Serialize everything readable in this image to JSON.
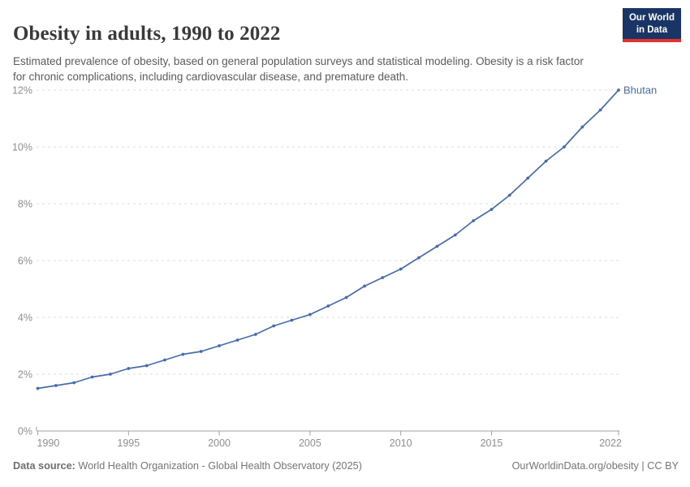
{
  "header": {
    "title": "Obesity in adults, 1990 to 2022",
    "subtitle": "Estimated prevalence of obesity, based on general population surveys and statistical modeling. Obesity is a risk factor for chronic complications, including cardiovascular disease, and premature death."
  },
  "logo": {
    "line1": "Our World",
    "line2": "in Data",
    "bg_color": "#183566",
    "stripe_color": "#e0342c"
  },
  "footer": {
    "source_label": "Data source:",
    "source_text": " World Health Organization - Global Health Observatory (2025)",
    "citation": "OurWorldinData.org/obesity | CC BY"
  },
  "chart_data": {
    "type": "line",
    "title": "Obesity in adults, 1990 to 2022",
    "x": [
      1990,
      1991,
      1992,
      1993,
      1994,
      1995,
      1996,
      1997,
      1998,
      1999,
      2000,
      2001,
      2002,
      2003,
      2004,
      2005,
      2006,
      2007,
      2008,
      2009,
      2010,
      2011,
      2012,
      2013,
      2014,
      2015,
      2016,
      2017,
      2018,
      2019,
      2020,
      2021,
      2022
    ],
    "series": [
      {
        "name": "Bhutan",
        "color": "#476cab",
        "values": [
          1.5,
          1.6,
          1.7,
          1.9,
          2.0,
          2.2,
          2.3,
          2.5,
          2.7,
          2.8,
          3.0,
          3.2,
          3.4,
          3.7,
          3.9,
          4.1,
          4.4,
          4.7,
          5.1,
          5.4,
          5.7,
          6.1,
          6.5,
          6.9,
          7.4,
          7.8,
          8.3,
          8.9,
          9.5,
          10.0,
          10.7,
          11.3,
          12.0
        ]
      }
    ],
    "xlabel": "",
    "ylabel": "",
    "xlim": [
      1990,
      2022
    ],
    "ylim": [
      0,
      12
    ],
    "x_ticks": [
      1990,
      1995,
      2000,
      2005,
      2010,
      2015,
      2022
    ],
    "y_ticks": [
      0,
      2,
      4,
      6,
      8,
      10,
      12
    ],
    "y_suffix": "%",
    "grid": "horizontal-dashed",
    "legend_position": "end-of-line-label",
    "end_label": "Bhutan",
    "grid_color": "#dedede",
    "axis_color": "#a1a1a1",
    "tick_label_color": "#8e8e8e"
  }
}
